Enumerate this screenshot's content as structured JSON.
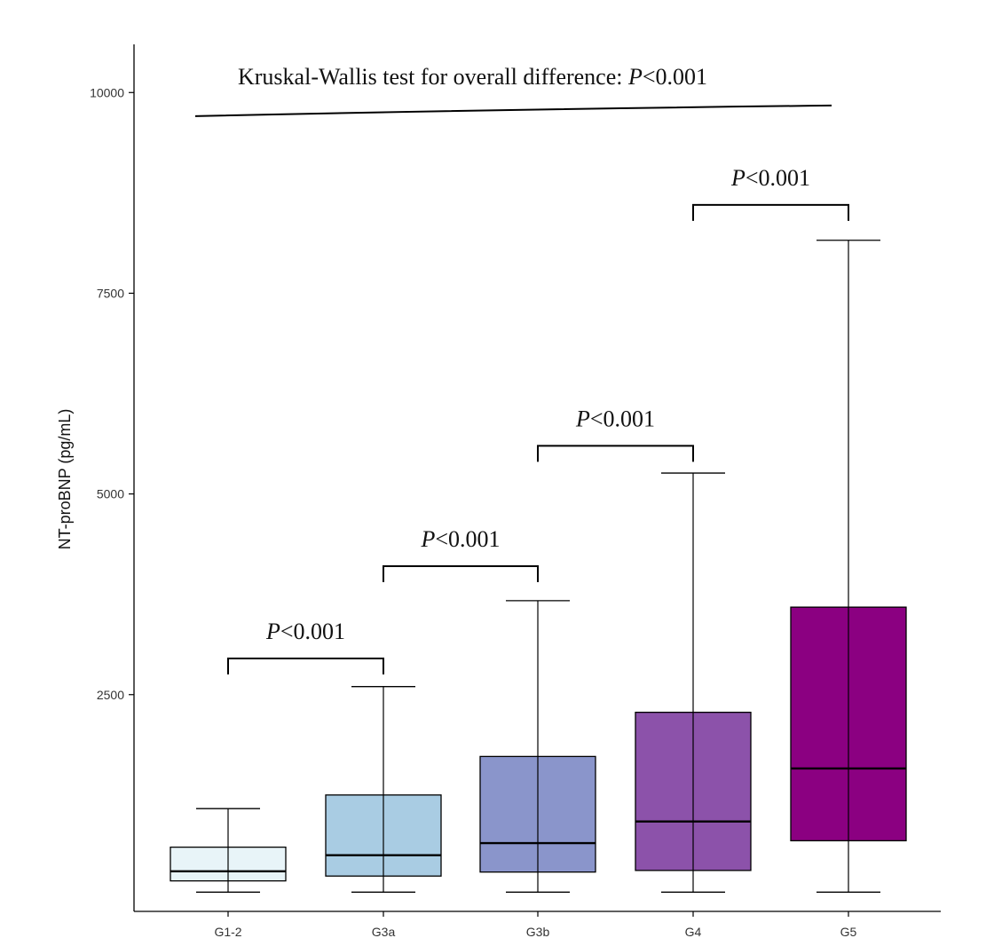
{
  "chart_data": {
    "type": "box",
    "title": "",
    "xlabel": "",
    "ylabel": "NT-proBNP (pg/mL)",
    "ylim": [
      -200,
      10600
    ],
    "yticks": [
      2500,
      5000,
      7500,
      10000
    ],
    "ytick_labels": [
      "2500",
      "5000",
      "7500",
      "10000"
    ],
    "grid": false,
    "categories": [
      "G1-2",
      "G3a",
      "G3b",
      "G4",
      "G5"
    ],
    "boxes": [
      {
        "name": "G1-2",
        "min": 40,
        "q1": 180,
        "median": 300,
        "q3": 600,
        "max": 1080,
        "color": "#e8f4f8"
      },
      {
        "name": "G3a",
        "min": 40,
        "q1": 240,
        "median": 500,
        "q3": 1250,
        "max": 2600,
        "color": "#a9cce3"
      },
      {
        "name": "G3b",
        "min": 40,
        "q1": 290,
        "median": 650,
        "q3": 1730,
        "max": 3670,
        "color": "#8a95cb"
      },
      {
        "name": "G4",
        "min": 40,
        "q1": 310,
        "median": 920,
        "q3": 2280,
        "max": 5260,
        "color": "#8c52aa"
      },
      {
        "name": "G5",
        "min": 40,
        "q1": 680,
        "median": 1580,
        "q3": 3590,
        "max": 8160,
        "color": "#8b0081"
      }
    ],
    "annotations": {
      "overall": {
        "text_prefix": "Kruskal-Wallis test for overall difference: ",
        "p_symbol": "P",
        "p_value": "<0.001",
        "y": 9750
      },
      "pairwise": [
        {
          "from": "G1-2",
          "to": "G3a",
          "p_symbol": "P",
          "p_value": "<0.001",
          "y": 2950
        },
        {
          "from": "G3a",
          "to": "G3b",
          "p_symbol": "P",
          "p_value": "<0.001",
          "y": 4100
        },
        {
          "from": "G3b",
          "to": "G4",
          "p_symbol": "P",
          "p_value": "<0.001",
          "y": 5600
        },
        {
          "from": "G4",
          "to": "G5",
          "p_symbol": "P",
          "p_value": "<0.001",
          "y": 8600
        }
      ]
    }
  }
}
